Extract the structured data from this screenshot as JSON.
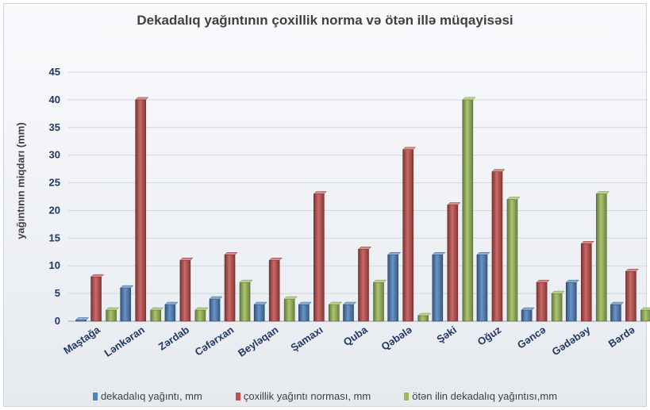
{
  "chart_data": {
    "type": "bar",
    "title": "Dekadalıq yağıntının çoxillik norma və ötən illə müqayisəsi",
    "xlabel": "",
    "ylabel": "yağıntının miqdarı (mm)",
    "ylim": [
      0,
      45
    ],
    "yticks": [
      0,
      5,
      10,
      15,
      20,
      25,
      30,
      35,
      40,
      45
    ],
    "grid": true,
    "legend_position": "bottom",
    "categories": [
      "Maştağa",
      "Lənkəran",
      "Zərdab",
      "Cəfərxan",
      "Beyləqan",
      "Şamaxı",
      "Quba",
      "Qəbələ",
      "Şəki",
      "Oğuz",
      "Gəncə",
      "Gədəbəy",
      "Bərdə"
    ],
    "series": [
      {
        "name": "dekadalıq yağıntı, mm",
        "color": "#4f81bd",
        "values": [
          0.2,
          6,
          3,
          4,
          3,
          3,
          3,
          12,
          12,
          12,
          2,
          7,
          3
        ]
      },
      {
        "name": "çoxillik yağıntı norması, mm",
        "color": "#c0504d",
        "values": [
          8,
          40,
          11,
          12,
          11,
          23,
          13,
          31,
          21,
          27,
          7,
          14,
          9
        ]
      },
      {
        "name": "ötən ilin dekadalıq yağıntısı,mm",
        "color": "#9bbb59",
        "values": [
          2,
          2,
          2,
          7,
          4,
          3,
          7,
          1,
          40,
          22,
          5,
          23,
          2
        ]
      }
    ]
  }
}
